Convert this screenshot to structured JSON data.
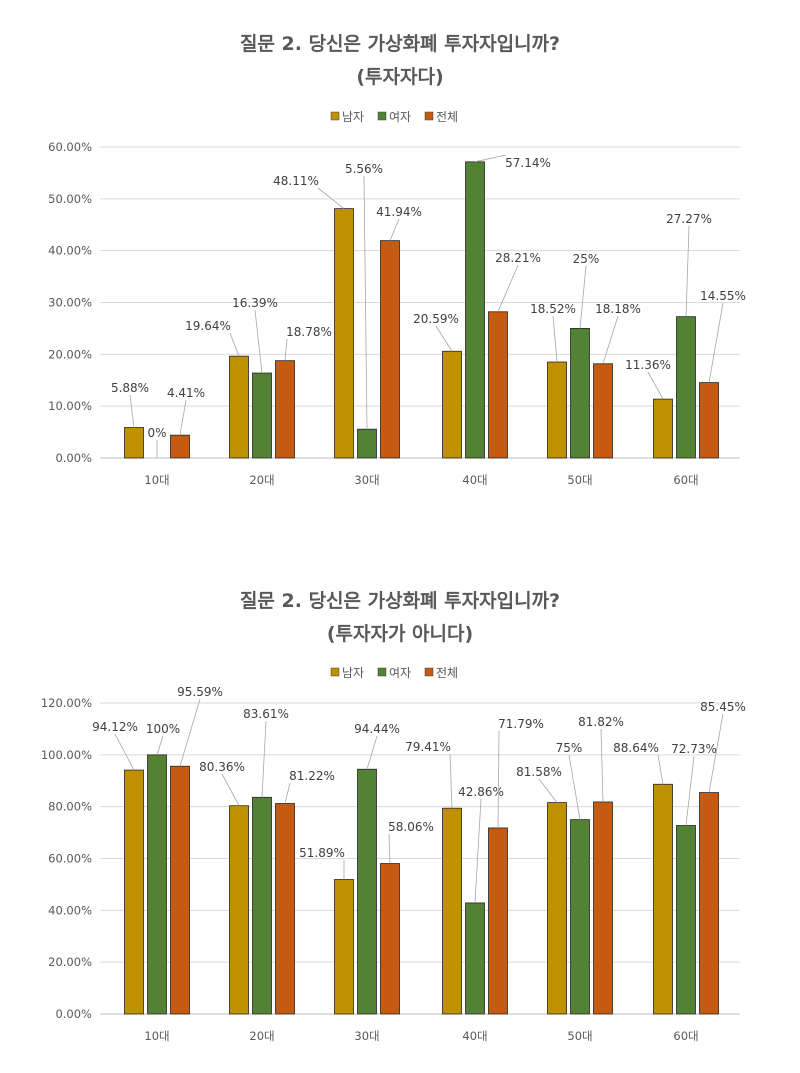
{
  "chart_data": [
    {
      "type": "bar",
      "title": [
        "질문 2. 당신은 가상화폐 투자자입니까?",
        "(투자자다)"
      ],
      "categories": [
        "10대",
        "20대",
        "30대",
        "40대",
        "50대",
        "60대"
      ],
      "series": [
        {
          "name": "남자",
          "color": "#BF9000",
          "values": [
            5.88,
            19.64,
            48.11,
            20.59,
            18.52,
            11.36
          ],
          "labels": [
            "5.88%",
            "19.64%",
            "48.11%",
            "20.59%",
            "18.52%",
            "11.36%"
          ]
        },
        {
          "name": "여자",
          "color": "#548235",
          "values": [
            0,
            16.39,
            5.56,
            57.14,
            25,
            27.27
          ],
          "labels": [
            "0%",
            "16.39%",
            "5.56%",
            "57.14%",
            "25%",
            "27.27%"
          ]
        },
        {
          "name": "전체",
          "color": "#C55A11",
          "values": [
            4.41,
            18.78,
            41.94,
            28.21,
            18.18,
            14.55
          ],
          "labels": [
            "4.41%",
            "18.78%",
            "41.94%",
            "28.21%",
            "18.18%",
            "14.55%"
          ]
        }
      ],
      "ylim": [
        0,
        60
      ],
      "yticks": [
        "0.00%",
        "10.00%",
        "20.00%",
        "30.00%",
        "40.00%",
        "50.00%",
        "60.00%"
      ],
      "grid": true,
      "legend": "top"
    },
    {
      "type": "bar",
      "title": [
        "질문 2. 당신은 가상화폐 투자자입니까?",
        "(투자자가 아니다)"
      ],
      "categories": [
        "10대",
        "20대",
        "30대",
        "40대",
        "50대",
        "60대"
      ],
      "series": [
        {
          "name": "남자",
          "color": "#BF9000",
          "values": [
            94.12,
            80.36,
            51.89,
            79.41,
            81.58,
            88.64
          ],
          "labels": [
            "94.12%",
            "80.36%",
            "51.89%",
            "79.41%",
            "81.58%",
            "88.64%"
          ]
        },
        {
          "name": "여자",
          "color": "#548235",
          "values": [
            100,
            83.61,
            94.44,
            42.86,
            75,
            72.73
          ],
          "labels": [
            "100%",
            "83.61%",
            "94.44%",
            "42.86%",
            "75%",
            "72.73%"
          ]
        },
        {
          "name": "전체",
          "color": "#C55A11",
          "values": [
            95.59,
            81.22,
            58.06,
            71.79,
            81.82,
            85.45
          ],
          "labels": [
            "95.59%",
            "81.22%",
            "58.06%",
            "71.79%",
            "81.82%",
            "85.45%"
          ]
        }
      ],
      "ylim": [
        0,
        120
      ],
      "yticks": [
        "0.00%",
        "20.00%",
        "40.00%",
        "60.00%",
        "80.00%",
        "100.00%",
        "120.00%"
      ],
      "grid": true,
      "legend": "top"
    }
  ]
}
